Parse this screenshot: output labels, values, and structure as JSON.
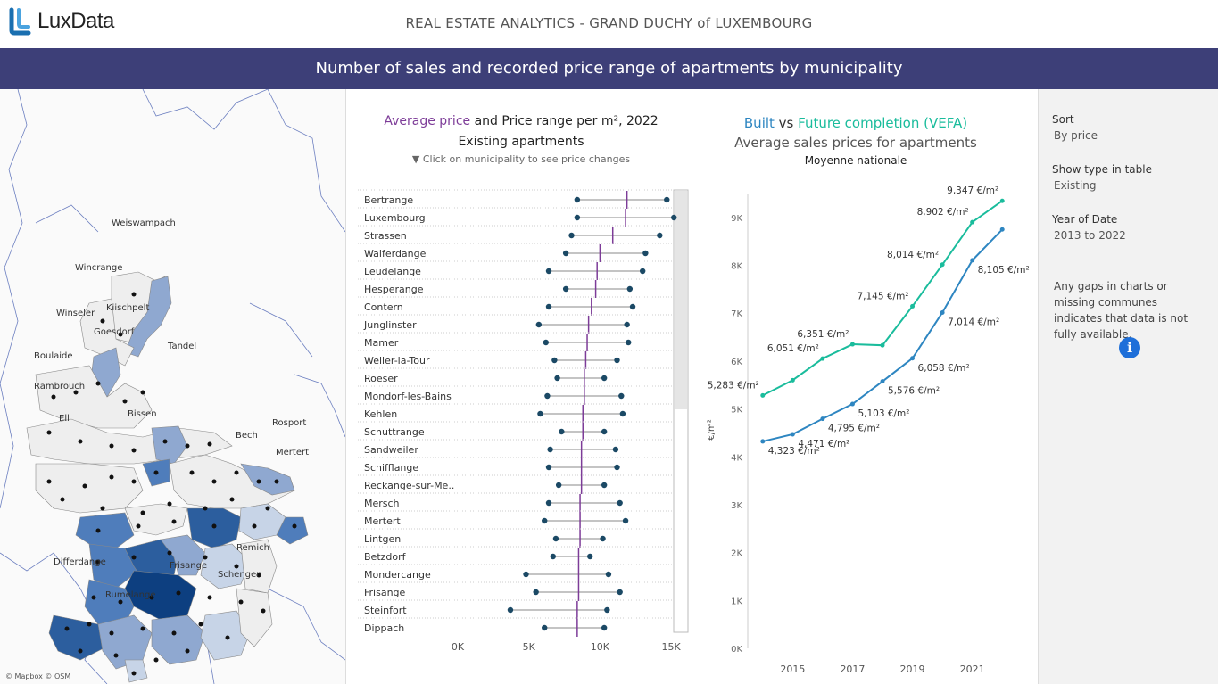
{
  "header": {
    "logo_text": "LuxData",
    "title": "REAL ESTATE ANALYTICS - GRAND DUCHY of LUXEMBOURG"
  },
  "banner": {
    "title": "Number of sales and recorded price range of apartments by municipality"
  },
  "map": {
    "credit": "© Mapbox © OSM",
    "labels": [
      "Weiswampach",
      "Wincrange",
      "Kiischpelt",
      "Winseler",
      "Goesdorf",
      "Tandel",
      "Boulaide",
      "Rambrouch",
      "Ell",
      "Bissen",
      "Rosport",
      "Bech",
      "Mertert",
      "Differdange",
      "Frisange",
      "Remich",
      "Schengen",
      "Rumelange"
    ],
    "fill_colors": [
      "#eeeeee",
      "#c7d4e7",
      "#8fa8d0",
      "#4f7dbb",
      "#2c5e9e",
      "#0d3f80"
    ]
  },
  "price_chart": {
    "title_part1": "Average price",
    "title_part2": " and ",
    "title_part3": "Price range per m², 2022",
    "subtitle": "Existing apartments",
    "hint": "▼ Click on municipality to see price changes",
    "colors": {
      "avg": "#7d3c98",
      "dot": "#1b4965",
      "line": "#888888"
    }
  },
  "chart_data": [
    {
      "type": "range",
      "title": "Average price and Price range per m², 2022",
      "subtitle": "Existing apartments",
      "xlim": [
        0,
        16000
      ],
      "xticks": [
        0,
        5000,
        10000,
        15000
      ],
      "xtick_labels": [
        "0K",
        "5K",
        "10K",
        "15K"
      ],
      "categories": [
        "Bertrange",
        "Luxembourg",
        "Strassen",
        "Walferdange",
        "Leudelange",
        "Hesperange",
        "Contern",
        "Junglinster",
        "Mamer",
        "Weiler-la-Tour",
        "Roeser",
        "Mondorf-les-Bains",
        "Kehlen",
        "Schuttrange",
        "Sandweiler",
        "Schifflange",
        "Reckange-sur-Me..",
        "Mersch",
        "Mertert",
        "Lintgen",
        "Betzdorf",
        "Mondercange",
        "Frisange",
        "Steinfort",
        "Dippach"
      ],
      "min": [
        8400,
        8400,
        8000,
        7600,
        6400,
        7600,
        6400,
        5700,
        6200,
        6800,
        7000,
        6300,
        5800,
        7300,
        6500,
        6400,
        7100,
        6400,
        6100,
        6900,
        6700,
        4800,
        5500,
        3700,
        6100
      ],
      "max": [
        14700,
        15200,
        14200,
        13200,
        13000,
        12100,
        12300,
        11900,
        12000,
        11200,
        10300,
        11500,
        11600,
        10300,
        11100,
        11200,
        10300,
        11400,
        11800,
        10200,
        9300,
        10600,
        11400,
        10500,
        10300
      ],
      "avg": [
        11900,
        11800,
        10900,
        10000,
        9800,
        9700,
        9400,
        9200,
        9100,
        9000,
        8900,
        8900,
        8800,
        8800,
        8700,
        8700,
        8700,
        8600,
        8600,
        8600,
        8500,
        8500,
        8500,
        8400,
        8400
      ]
    },
    {
      "type": "line",
      "title": "Built vs Future completion (VEFA)",
      "subtitle": "Average sales prices for apartments",
      "subtitle2": "Moyenne nationale",
      "ylabel": "€/m²",
      "ylim": [
        0,
        9500
      ],
      "yticks": [
        0,
        1000,
        2000,
        3000,
        4000,
        5000,
        6000,
        7000,
        8000,
        9000
      ],
      "ytick_labels": [
        "0K",
        "1K",
        "2K",
        "3K",
        "4K",
        "5K",
        "6K",
        "7K",
        "8K",
        "9K"
      ],
      "xlim": [
        2013.5,
        2022.5
      ],
      "xticks": [
        2015,
        2017,
        2019,
        2021
      ],
      "xtick_labels": [
        "2015",
        "2017",
        "2019",
        "2021"
      ],
      "series": [
        {
          "name": "Built",
          "color": "#2e86c1",
          "x": [
            2014,
            2015,
            2016,
            2017,
            2018,
            2019,
            2020,
            2021,
            2022
          ],
          "y": [
            4323,
            4471,
            4795,
            5103,
            5576,
            6058,
            7014,
            8105,
            8750
          ],
          "labels": [
            "4,323 €/m²",
            "4,471 €/m²",
            "4,795 €/m²",
            "5,103 €/m²",
            "5,576 €/m²",
            "6,058 €/m²",
            "7,014 €/m²",
            "8,105 €/m²",
            ""
          ]
        },
        {
          "name": "Future completion (VEFA)",
          "color": "#1abc9c",
          "x": [
            2014,
            2015,
            2016,
            2017,
            2018,
            2019,
            2020,
            2021,
            2022
          ],
          "y": [
            5283,
            5600,
            6051,
            6351,
            6330,
            7145,
            8014,
            8902,
            9347
          ],
          "labels": [
            "5,283 €/m²",
            "",
            "6,051 €/m²",
            "6,351 €/m²",
            "",
            "7,145 €/m²",
            "8,014 €/m²",
            "8,902 €/m²",
            "9,347 €/m²"
          ]
        }
      ]
    }
  ],
  "trend_chart": {
    "title_built": "Built",
    "title_vs": " vs ",
    "title_vefa": "Future completion (VEFA)",
    "subtitle": "Average sales prices for apartments",
    "subtitle2": "Moyenne nationale"
  },
  "sidebar": {
    "sort_label": "Sort",
    "sort_value": "By price",
    "type_label": "Show type in table",
    "type_value": "Existing",
    "year_label": "Year of Date",
    "year_value": "2013 to 2022",
    "note": "Any gaps in charts or missing communes indicates that data is not fully available.",
    "info_icon": "info-icon"
  }
}
